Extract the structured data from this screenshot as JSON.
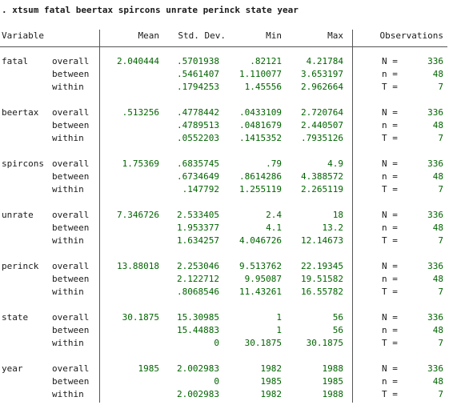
{
  "command": ". xtsum fatal beertax spircons unrate perinck state year",
  "headers": {
    "variable": "Variable",
    "mean": "Mean",
    "std": "Std. Dev.",
    "min": "Min",
    "max": "Max",
    "obs": "Observations"
  },
  "variables": [
    {
      "name": "fatal",
      "rows": [
        {
          "type": "overall",
          "mean": "2.040444",
          "std": ".5701938",
          "min": ".82121",
          "max": "4.21784",
          "obs_label": "N =",
          "obs": "336"
        },
        {
          "type": "between",
          "mean": "",
          "std": ".5461407",
          "min": "1.110077",
          "max": "3.653197",
          "obs_label": "n =",
          "obs": "48"
        },
        {
          "type": "within",
          "mean": "",
          "std": ".1794253",
          "min": "1.45556",
          "max": "2.962664",
          "obs_label": "T =",
          "obs": "7"
        }
      ]
    },
    {
      "name": "beertax",
      "rows": [
        {
          "type": "overall",
          "mean": ".513256",
          "std": ".4778442",
          "min": ".0433109",
          "max": "2.720764",
          "obs_label": "N =",
          "obs": "336"
        },
        {
          "type": "between",
          "mean": "",
          "std": ".4789513",
          "min": ".0481679",
          "max": "2.440507",
          "obs_label": "n =",
          "obs": "48"
        },
        {
          "type": "within",
          "mean": "",
          "std": ".0552203",
          "min": ".1415352",
          "max": ".7935126",
          "obs_label": "T =",
          "obs": "7"
        }
      ]
    },
    {
      "name": "spircons",
      "rows": [
        {
          "type": "overall",
          "mean": "1.75369",
          "std": ".6835745",
          "min": ".79",
          "max": "4.9",
          "obs_label": "N =",
          "obs": "336"
        },
        {
          "type": "between",
          "mean": "",
          "std": ".6734649",
          "min": ".8614286",
          "max": "4.388572",
          "obs_label": "n =",
          "obs": "48"
        },
        {
          "type": "within",
          "mean": "",
          "std": ".147792",
          "min": "1.255119",
          "max": "2.265119",
          "obs_label": "T =",
          "obs": "7"
        }
      ]
    },
    {
      "name": "unrate",
      "rows": [
        {
          "type": "overall",
          "mean": "7.346726",
          "std": "2.533405",
          "min": "2.4",
          "max": "18",
          "obs_label": "N =",
          "obs": "336"
        },
        {
          "type": "between",
          "mean": "",
          "std": "1.953377",
          "min": "4.1",
          "max": "13.2",
          "obs_label": "n =",
          "obs": "48"
        },
        {
          "type": "within",
          "mean": "",
          "std": "1.634257",
          "min": "4.046726",
          "max": "12.14673",
          "obs_label": "T =",
          "obs": "7"
        }
      ]
    },
    {
      "name": "perinck",
      "rows": [
        {
          "type": "overall",
          "mean": "13.88018",
          "std": "2.253046",
          "min": "9.513762",
          "max": "22.19345",
          "obs_label": "N =",
          "obs": "336"
        },
        {
          "type": "between",
          "mean": "",
          "std": "2.122712",
          "min": "9.95087",
          "max": "19.51582",
          "obs_label": "n =",
          "obs": "48"
        },
        {
          "type": "within",
          "mean": "",
          "std": ".8068546",
          "min": "11.43261",
          "max": "16.55782",
          "obs_label": "T =",
          "obs": "7"
        }
      ]
    },
    {
      "name": "state",
      "rows": [
        {
          "type": "overall",
          "mean": "30.1875",
          "std": "15.30985",
          "min": "1",
          "max": "56",
          "obs_label": "N =",
          "obs": "336"
        },
        {
          "type": "between",
          "mean": "",
          "std": "15.44883",
          "min": "1",
          "max": "56",
          "obs_label": "n =",
          "obs": "48"
        },
        {
          "type": "within",
          "mean": "",
          "std": "0",
          "min": "30.1875",
          "max": "30.1875",
          "obs_label": "T =",
          "obs": "7"
        }
      ]
    },
    {
      "name": "year",
      "rows": [
        {
          "type": "overall",
          "mean": "1985",
          "std": "2.002983",
          "min": "1982",
          "max": "1988",
          "obs_label": "N =",
          "obs": "336"
        },
        {
          "type": "between",
          "mean": "",
          "std": "0",
          "min": "1985",
          "max": "1985",
          "obs_label": "n =",
          "obs": "48"
        },
        {
          "type": "within",
          "mean": "",
          "std": "2.002983",
          "min": "1982",
          "max": "1988",
          "obs_label": "T =",
          "obs": "7"
        }
      ]
    }
  ]
}
